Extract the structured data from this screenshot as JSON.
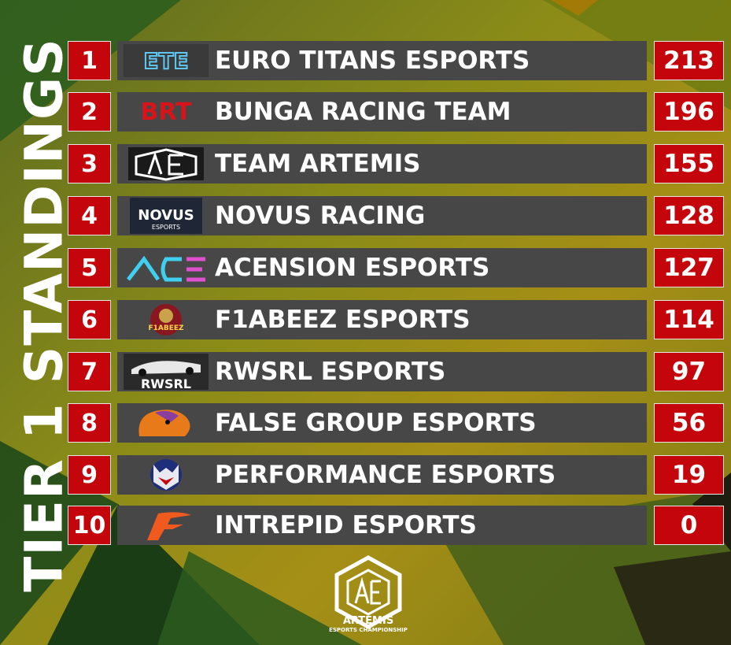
{
  "title": "TIER 1 STANDINGS",
  "colors": {
    "accent": "#c4060c",
    "bar": "#474747",
    "text": "#ffffff"
  },
  "standings": [
    {
      "rank": "1",
      "team": "EURO TITANS ESPORTS",
      "points": "213",
      "logo": "euro-titans-logo",
      "logo_text": "ETE"
    },
    {
      "rank": "2",
      "team": "BUNGA RACING TEAM",
      "points": "196",
      "logo": "bunga-racing-logo",
      "logo_text": "BRT"
    },
    {
      "rank": "3",
      "team": "TEAM ARTEMIS",
      "points": "155",
      "logo": "team-artemis-logo",
      "logo_text": ""
    },
    {
      "rank": "4",
      "team": "NOVUS RACING",
      "points": "128",
      "logo": "novus-racing-logo",
      "logo_text": "NOVUS"
    },
    {
      "rank": "5",
      "team": "ACENSION ESPORTS",
      "points": "127",
      "logo": "acension-logo",
      "logo_text": "ACE"
    },
    {
      "rank": "6",
      "team": "F1ABEEZ ESPORTS",
      "points": "114",
      "logo": "f1abeez-logo",
      "logo_text": "F1ABEEZ"
    },
    {
      "rank": "7",
      "team": "RWSRL ESPORTS",
      "points": "97",
      "logo": "rwsrl-logo",
      "logo_text": "RWSRL"
    },
    {
      "rank": "8",
      "team": "FALSE GROUP ESPORTS",
      "points": "56",
      "logo": "false-group-logo",
      "logo_text": ""
    },
    {
      "rank": "9",
      "team": "PERFORMANCE ESPORTS",
      "points": "19",
      "logo": "performance-wolf-logo",
      "logo_text": ""
    },
    {
      "rank": "10",
      "team": "INTREPID ESPORTS",
      "points": "0",
      "logo": "intrepid-logo",
      "logo_text": ""
    }
  ],
  "footer": {
    "brand": "ARTEMIS",
    "subtitle": "ESPORTS CHAMPIONSHIP",
    "logo": "artemis-championship-logo"
  }
}
